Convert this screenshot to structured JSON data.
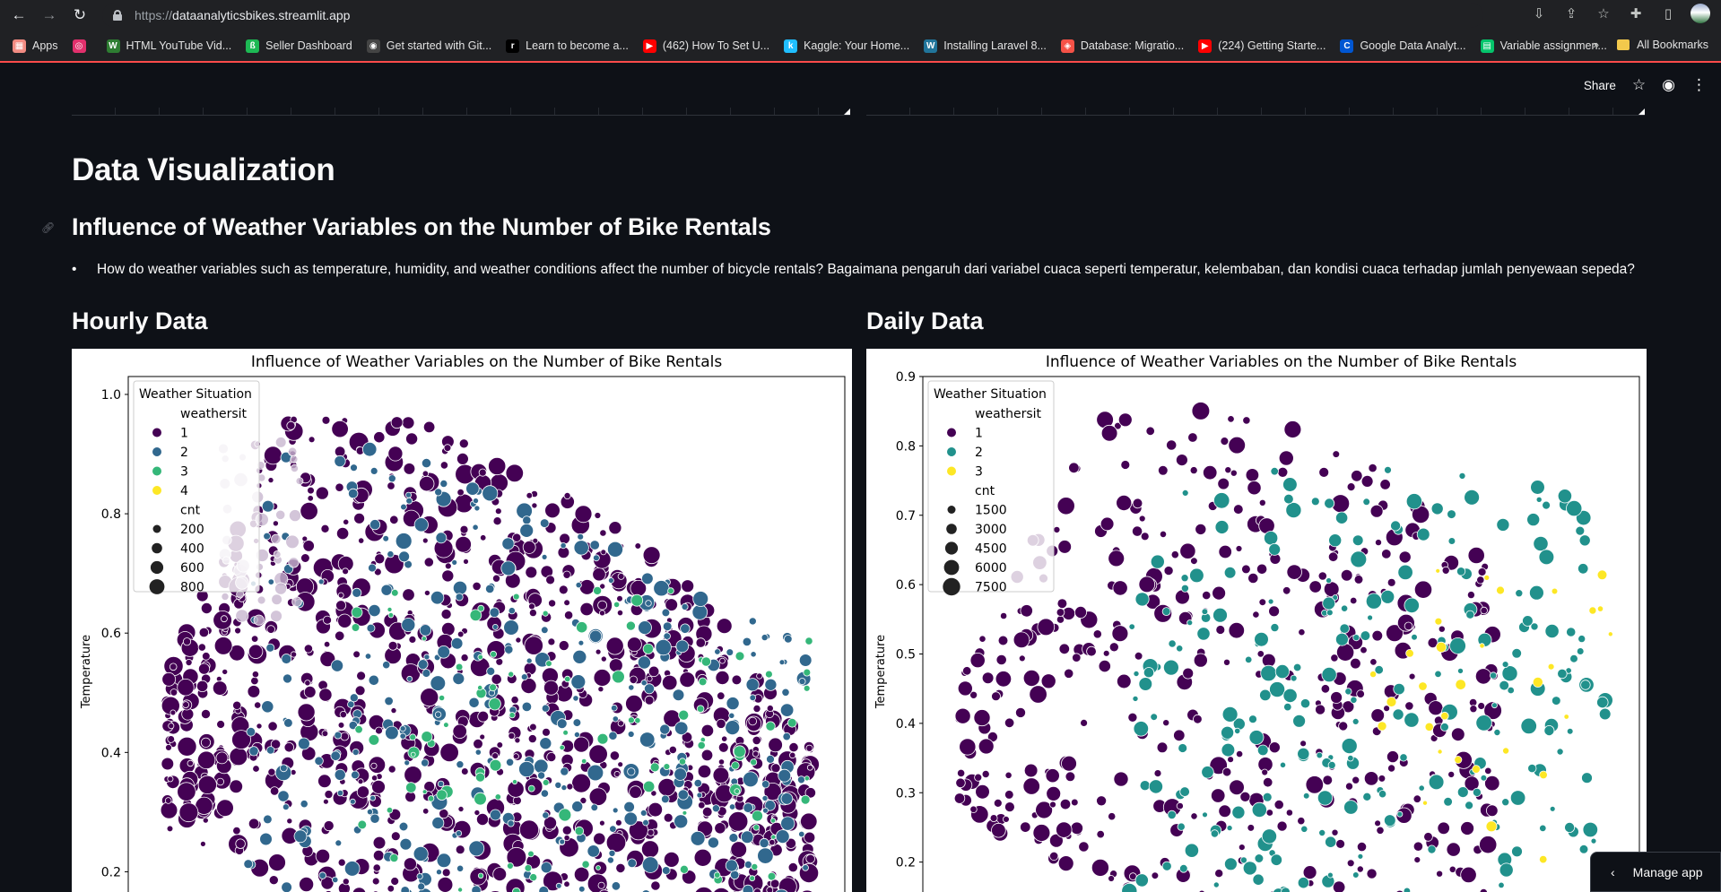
{
  "browser": {
    "url_scheme": "https://",
    "url_host": "dataanalyticsbikes.streamlit.app",
    "bookmarks": [
      {
        "label": "Apps",
        "color": "#f28b82",
        "glyph": "▦"
      },
      {
        "label": "",
        "color": "#e1306c",
        "glyph": "◎"
      },
      {
        "label": "HTML YouTube Vid...",
        "color": "#2e7d32",
        "glyph": "W"
      },
      {
        "label": "Seller Dashboard",
        "color": "#1db954",
        "glyph": "ß"
      },
      {
        "label": "Get started with Git...",
        "color": "#444",
        "glyph": "◉"
      },
      {
        "label": "Learn to become a...",
        "color": "#000",
        "glyph": "r"
      },
      {
        "label": "(462) How To Set U...",
        "color": "#ff0000",
        "glyph": "▶"
      },
      {
        "label": "Kaggle: Your Home...",
        "color": "#20beff",
        "glyph": "k"
      },
      {
        "label": "Installing Laravel 8...",
        "color": "#21759b",
        "glyph": "W"
      },
      {
        "label": "Database: Migratio...",
        "color": "#f55247",
        "glyph": "◈"
      },
      {
        "label": "(224) Getting Starte...",
        "color": "#ff0000",
        "glyph": "▶"
      },
      {
        "label": "Google Data Analyt...",
        "color": "#0056d2",
        "glyph": "C"
      },
      {
        "label": "Variable assignmen...",
        "color": "#05c46b",
        "glyph": "▤"
      }
    ],
    "more_label": "»",
    "all_bookmarks_label": "All Bookmarks"
  },
  "header": {
    "share_label": "Share"
  },
  "page": {
    "title": "Data Visualization",
    "subtitle": "Influence of Weather Variables on the Number of Bike Rentals",
    "question": "How do weather variables such as temperature, humidity, and weather conditions affect the number of bicycle rentals? Bagaimana pengaruh dari variabel cuaca seperti temperatur, kelembaban, dan kondisi cuaca terhadap jumlah penyewaan sepeda?",
    "hourly_heading": "Hourly Data",
    "daily_heading": "Daily Data",
    "manage_app_label": "Manage app"
  },
  "colors": {
    "weathersit_1": "#440154",
    "weathersit_2": "#31688e",
    "weathersit_3": "#35b779",
    "weathersit_4": "#fde725",
    "daily_2": "#21918c",
    "daily_3": "#fde725"
  },
  "chart_data": [
    {
      "type": "scatter",
      "title": "Influence of Weather Variables on the Number of Bike Rentals",
      "xlabel": "",
      "ylabel": "Temperature",
      "ylim": [
        0.1,
        1.03
      ],
      "yticks": [
        0.2,
        0.4,
        0.6,
        0.8,
        1.0
      ],
      "ytick_labels": [
        "0.2",
        "0.4",
        "0.6",
        "0.8",
        "1.0"
      ],
      "grid": false,
      "legend": {
        "placement": "top-left",
        "title": "Weather Situation",
        "hue_title": "weathersit",
        "hue_labels": [
          "1",
          "2",
          "3",
          "4"
        ],
        "size_title": "cnt",
        "size_labels": [
          "200",
          "400",
          "600",
          "800"
        ]
      },
      "series": [
        {
          "name": "1",
          "color": "#440154",
          "density_y": [
            0.22,
            0.75
          ],
          "count_approx": 620
        },
        {
          "name": "2",
          "color": "#31688e",
          "density_y": [
            0.18,
            0.7
          ],
          "count_approx": 240
        },
        {
          "name": "3",
          "color": "#35b779",
          "density_y": [
            0.15,
            0.62
          ],
          "count_approx": 60
        },
        {
          "name": "4",
          "color": "#fde725",
          "density_y": [],
          "count_approx": 0
        }
      ]
    },
    {
      "type": "scatter",
      "title": "Influence of Weather Variables on the Number of Bike Rentals",
      "xlabel": "",
      "ylabel": "Temperature",
      "ylim": [
        0.1,
        0.9
      ],
      "yticks": [
        0.2,
        0.3,
        0.4,
        0.5,
        0.6,
        0.7,
        0.8,
        0.9
      ],
      "ytick_labels": [
        "0.2",
        "0.3",
        "0.4",
        "0.5",
        "0.6",
        "0.7",
        "0.8",
        "0.9"
      ],
      "grid": false,
      "legend": {
        "placement": "top-left",
        "title": "Weather Situation",
        "hue_title": "weathersit",
        "hue_labels": [
          "1",
          "2",
          "3"
        ],
        "size_title": "cnt",
        "size_labels": [
          "1500",
          "3000",
          "4500",
          "6000",
          "7500"
        ]
      },
      "series": [
        {
          "name": "1",
          "color": "#440154",
          "density_y": [
            0.25,
            0.85
          ],
          "count_approx": 300
        },
        {
          "name": "2",
          "color": "#21918c",
          "density_y": [
            0.18,
            0.72
          ],
          "count_approx": 180
        },
        {
          "name": "3",
          "color": "#fde725",
          "density_y": [
            0.2,
            0.63
          ],
          "count_approx": 25
        }
      ]
    }
  ]
}
